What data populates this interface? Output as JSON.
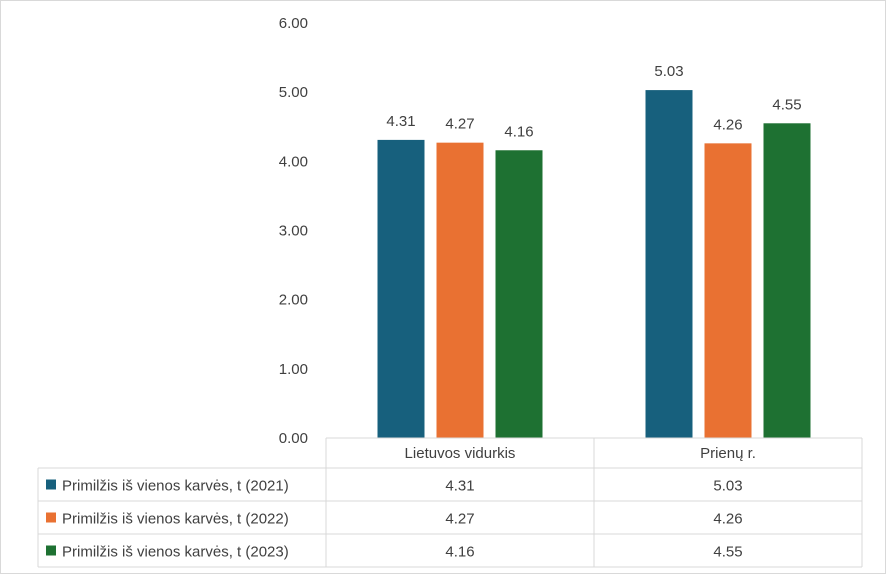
{
  "chart_data": {
    "type": "bar",
    "categories": [
      "Lietuvos vidurkis",
      "Prienų r."
    ],
    "series": [
      {
        "name": "Primilžis iš vienos karvės, t (2021)",
        "values": [
          4.31,
          5.03
        ],
        "color": "#17607d"
      },
      {
        "name": "Primilžis iš vienos karvės, t (2022)",
        "values": [
          4.27,
          4.26
        ],
        "color": "#e97132"
      },
      {
        "name": "Primilžis iš vienos karvės, t (2023)",
        "values": [
          4.16,
          4.55
        ],
        "color": "#1e7132"
      }
    ],
    "value_labels": [
      [
        "4.31",
        "5.03"
      ],
      [
        "4.27",
        "4.26"
      ],
      [
        "4.16",
        "4.55"
      ]
    ],
    "yticks": [
      "0.00",
      "1.00",
      "2.00",
      "3.00",
      "4.00",
      "5.00",
      "6.00"
    ],
    "ylim": [
      0,
      6
    ],
    "grid": false,
    "legend": "data-table"
  }
}
